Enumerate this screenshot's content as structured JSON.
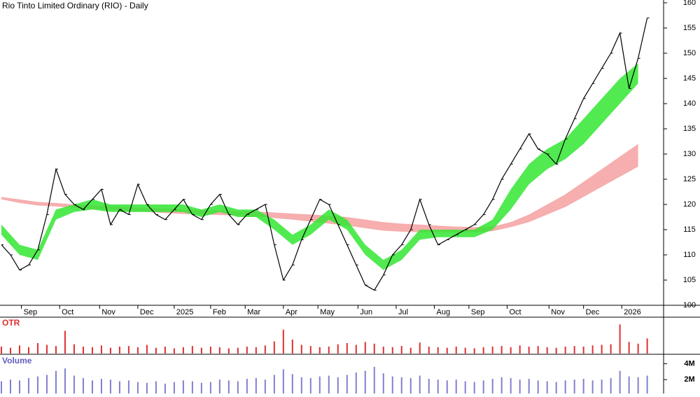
{
  "chart_data": {
    "type": "line",
    "title": "Rio Tinto Limited Ordinary (RIO) - Daily",
    "x": [
      0,
      5,
      10,
      15,
      20,
      25,
      30,
      35,
      40,
      45,
      50,
      55,
      60,
      65,
      70,
      75,
      80,
      85,
      90,
      95,
      100,
      105,
      110,
      115,
      120,
      125,
      130,
      135,
      140,
      145,
      150,
      155,
      160,
      165,
      170,
      175,
      180,
      185,
      190,
      195,
      200,
      205,
      210,
      215,
      220,
      225,
      230,
      235,
      240,
      245,
      250,
      255,
      260,
      265,
      270,
      275,
      280,
      285,
      290,
      295,
      300,
      305,
      310,
      315,
      320,
      325,
      330,
      335,
      340,
      345,
      350,
      355
    ],
    "values": [
      112,
      110,
      107,
      108,
      111,
      118,
      127,
      122,
      120,
      119,
      121,
      123,
      116,
      119,
      118,
      124,
      120,
      118,
      117,
      119,
      121,
      118,
      117,
      120,
      122,
      118,
      116,
      118,
      119,
      120,
      112,
      105,
      108,
      113,
      117,
      121,
      120,
      116,
      112,
      108,
      104,
      103,
      106,
      110,
      112,
      115,
      121,
      116,
      112,
      113,
      114,
      115,
      116,
      118,
      121,
      125,
      128,
      131,
      134,
      131,
      130,
      128,
      133,
      137,
      141,
      144,
      147,
      150,
      154,
      143,
      149,
      157
    ],
    "color": "#000000",
    "xlim": [
      0,
      364
    ],
    "xticks": [
      {
        "value": 11,
        "label": "Sep"
      },
      {
        "value": 32,
        "label": "Oct"
      },
      {
        "value": 54,
        "label": "Nov"
      },
      {
        "value": 75,
        "label": "Dec"
      },
      {
        "value": 95,
        "label": "2025"
      },
      {
        "value": 115,
        "label": "Feb"
      },
      {
        "value": 134,
        "label": "Mar"
      },
      {
        "value": 155,
        "label": "Apr"
      },
      {
        "value": 174,
        "label": "May"
      },
      {
        "value": 196,
        "label": "Jun"
      },
      {
        "value": 217,
        "label": "Jul"
      },
      {
        "value": 238,
        "label": "Aug"
      },
      {
        "value": 257,
        "label": "Sep"
      },
      {
        "value": 278,
        "label": "Oct"
      },
      {
        "value": 301,
        "label": "Nov"
      },
      {
        "value": 320,
        "label": "Dec"
      },
      {
        "value": 341,
        "label": "2026"
      }
    ],
    "ylim": [
      100,
      160
    ],
    "yticks": [
      100,
      105,
      110,
      115,
      120,
      125,
      130,
      135,
      140,
      145,
      150,
      155,
      160
    ],
    "band_x": [
      0,
      10,
      20,
      30,
      40,
      50,
      60,
      70,
      80,
      90,
      100,
      110,
      120,
      130,
      140,
      150,
      160,
      170,
      180,
      190,
      200,
      210,
      220,
      230,
      240,
      250,
      260,
      270,
      280,
      290,
      300,
      310,
      320,
      330,
      340,
      350
    ],
    "bands": [
      {
        "color": "#f4a0a0",
        "upper": [
          121.5,
          121,
          120.5,
          120.3,
          120,
          119.8,
          119.7,
          119.5,
          119.3,
          119.2,
          119,
          118.9,
          118.8,
          118.7,
          118.6,
          118.4,
          118.2,
          118,
          117.8,
          117.5,
          117,
          116.5,
          116.2,
          116,
          115.8,
          115.6,
          115.5,
          115.6,
          116.5,
          118,
          120,
          122,
          124.5,
          127,
          129.5,
          132
        ],
        "lower": [
          121,
          120.3,
          119.8,
          119.6,
          119.3,
          119.1,
          118.9,
          118.7,
          118.5,
          118.3,
          118.1,
          118,
          117.9,
          117.8,
          117.6,
          117.3,
          117,
          116.6,
          116.2,
          115.8,
          115.3,
          114.8,
          114.6,
          114.5,
          114.5,
          114.5,
          114.5,
          114.7,
          115.5,
          116.5,
          118,
          119.5,
          121.5,
          123.5,
          125.5,
          127.5
        ]
      },
      {
        "color": "#33e633",
        "upper": [
          116,
          112,
          111,
          119,
          120,
          121,
          120,
          120,
          120,
          120,
          120,
          119,
          120,
          119,
          119,
          117,
          114,
          116,
          119,
          117,
          112,
          109,
          111,
          115,
          115,
          115,
          115,
          117,
          123,
          128,
          131,
          133,
          137,
          141,
          145,
          148
        ],
        "lower": [
          114,
          110,
          109,
          117,
          118.5,
          119,
          118.5,
          118.5,
          118.5,
          118.5,
          118.5,
          117.5,
          118.5,
          117.5,
          117.5,
          115,
          112,
          114,
          117,
          115,
          110,
          107,
          109,
          113,
          113.5,
          113.5,
          113.5,
          115,
          119,
          124,
          127,
          129,
          132,
          136,
          140,
          144
        ]
      }
    ],
    "otr": {
      "label": "OTR",
      "color": "#e03030",
      "ylim": [
        0,
        6
      ],
      "values": [
        1.2,
        1.0,
        1.4,
        1.1,
        1.8,
        1.5,
        1.3,
        3.9,
        1.6,
        1.2,
        1.1,
        1.4,
        1.0,
        1.2,
        1.3,
        1.1,
        1.5,
        1.0,
        1.2,
        0.9,
        1.1,
        1.3,
        1.0,
        1.2,
        1.1,
        0.9,
        1.0,
        1.2,
        1.1,
        1.4,
        2.1,
        4.1,
        2.4,
        1.5,
        1.3,
        1.1,
        1.2,
        1.6,
        1.8,
        1.5,
        2.0,
        1.7,
        1.2,
        1.1,
        1.3,
        1.0,
        1.9,
        1.2,
        1.1,
        1.0,
        1.2,
        1.0,
        0.9,
        1.1,
        1.2,
        1.3,
        1.1,
        1.4,
        1.2,
        1.3,
        1.1,
        1.0,
        1.2,
        1.3,
        1.2,
        1.4,
        1.5,
        1.6,
        5.0,
        2.0,
        1.7,
        2.6
      ]
    },
    "volume": {
      "label": "Volume",
      "color": "#8080d0",
      "ylim": [
        0,
        5
      ],
      "yticks": [
        {
          "value": 2,
          "label": "2M"
        },
        {
          "value": 4,
          "label": "4M"
        }
      ],
      "values": [
        1.8,
        2.0,
        1.9,
        2.2,
        2.4,
        2.6,
        3.1,
        3.4,
        2.5,
        2.2,
        1.9,
        2.1,
        2.0,
        1.8,
        1.9,
        1.7,
        1.6,
        1.8,
        1.5,
        1.7,
        1.9,
        1.8,
        1.6,
        1.7,
        2.0,
        1.9,
        1.8,
        2.1,
        2.2,
        2.0,
        2.6,
        3.3,
        2.7,
        2.3,
        2.2,
        2.4,
        2.5,
        2.3,
        2.6,
        2.9,
        3.1,
        3.6,
        2.8,
        2.4,
        2.3,
        2.2,
        2.5,
        2.1,
        2.0,
        1.9,
        2.0,
        1.8,
        1.7,
        1.9,
        2.1,
        2.3,
        2.2,
        2.0,
        2.1,
        1.9,
        1.8,
        1.7,
        1.9,
        2.0,
        2.1,
        1.9,
        2.0,
        2.2,
        3.1,
        2.4,
        2.3,
        2.5
      ]
    }
  }
}
